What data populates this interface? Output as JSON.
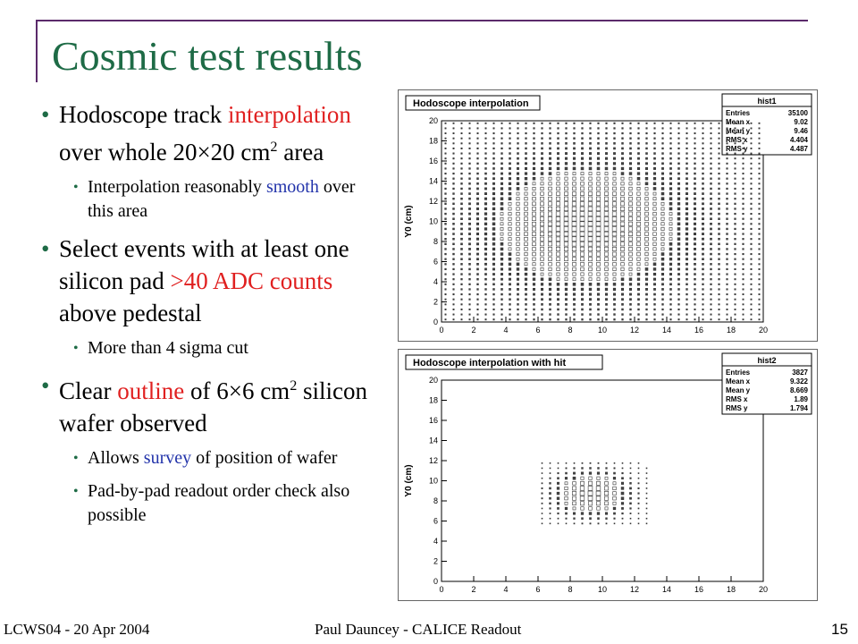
{
  "title": "Cosmic test results",
  "bullets": [
    {
      "parts": [
        "Hodoscope track ",
        "interpolation",
        " over whole 20×20 cm",
        "2",
        " area"
      ]
    },
    {
      "sub": [
        "Interpolation reasonably ",
        "smooth",
        " over this area"
      ]
    },
    {
      "parts": [
        "Select events with at least one silicon pad ",
        ">40 ADC counts",
        " above pedestal"
      ]
    },
    {
      "sub": [
        "More than 4 sigma cut"
      ]
    },
    {
      "parts": [
        "Clear ",
        "outline",
        " of 6×6 cm",
        "2",
        " silicon wafer observed"
      ]
    },
    {
      "sub": [
        "Allows ",
        "survey",
        " of position of wafer"
      ]
    },
    {
      "sub": [
        "Pad-by-pad readout order check also possible"
      ]
    }
  ],
  "colors": {
    "title": "#1e6b46",
    "highlight_red": "#e02020",
    "highlight_blue": "#2233aa",
    "frame": "#5b2a6b"
  },
  "chart_data": [
    {
      "type": "heatmap",
      "title": "Hodoscope interpolation",
      "xlabel": "",
      "ylabel": "Y0 (cm)",
      "xlim": [
        0,
        20
      ],
      "ylim": [
        0,
        20
      ],
      "xticks": [
        "0",
        "2",
        "4",
        "6",
        "8",
        "10",
        "12",
        "14",
        "16",
        "18",
        "20"
      ],
      "yticks": [
        "0",
        "2",
        "4",
        "6",
        "8",
        "10",
        "12",
        "14",
        "16",
        "18",
        "20"
      ],
      "stats": {
        "name": "hist1",
        "rows": [
          [
            "Entries",
            "35100"
          ],
          [
            "Mean x",
            "9.02"
          ],
          [
            "Mean y",
            "9.46"
          ],
          [
            "RMS x",
            "4.404"
          ],
          [
            "RMS y",
            "4.487"
          ]
        ]
      },
      "distribution": {
        "region": [
          0,
          20,
          0,
          20
        ],
        "center": [
          9.0,
          9.5
        ],
        "spread": [
          4.4,
          4.5
        ]
      }
    },
    {
      "type": "heatmap",
      "title": "Hodoscope interpolation with hit",
      "xlabel": "",
      "ylabel": "Y0 (cm)",
      "xlim": [
        0,
        20
      ],
      "ylim": [
        0,
        20
      ],
      "xticks": [
        "0",
        "2",
        "4",
        "6",
        "8",
        "10",
        "12",
        "14",
        "16",
        "18",
        "20"
      ],
      "yticks": [
        "0",
        "2",
        "4",
        "6",
        "8",
        "10",
        "12",
        "14",
        "16",
        "18",
        "20"
      ],
      "stats": {
        "name": "hist2",
        "rows": [
          [
            "Entries",
            "3827"
          ],
          [
            "Mean x",
            "9.322"
          ],
          [
            "Mean y",
            "8.669"
          ],
          [
            "RMS x",
            "1.89"
          ],
          [
            "RMS y",
            "1.794"
          ]
        ]
      },
      "distribution": {
        "region": [
          6,
          13,
          5.5,
          12
        ],
        "center": [
          9.3,
          8.7
        ],
        "spread": [
          1.9,
          1.8
        ]
      }
    }
  ],
  "footer": {
    "left": "LCWS04 - 20 Apr 2004",
    "center": "Paul Dauncey - CALICE Readout",
    "page": "15"
  }
}
